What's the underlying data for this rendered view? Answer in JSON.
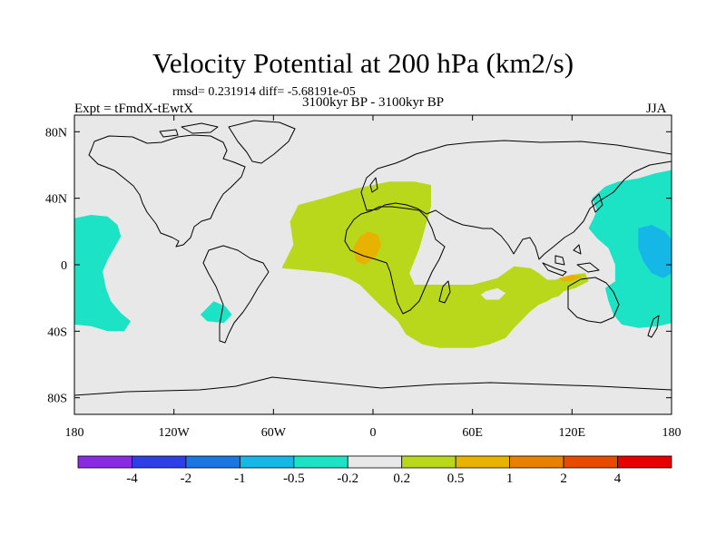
{
  "chart_data": {
    "type": "heatmap",
    "title": "Velocity Potential at 200 hPa (km2/s)",
    "rmsd_label": "rmsd= 0.231914 diff= -5.68191e-05",
    "period": "3100kyr BP - 3100kyr BP",
    "experiment": "Expt = tFmdX-tEwtX",
    "season": "JJA",
    "x_ticks": [
      "180",
      "120W",
      "60W",
      "0",
      "60E",
      "120E",
      "180"
    ],
    "x_tick_values": [
      -180,
      -120,
      -60,
      0,
      60,
      120,
      180
    ],
    "y_ticks": [
      "80N",
      "40N",
      "0",
      "40S",
      "80S"
    ],
    "y_tick_values": [
      80,
      40,
      0,
      -40,
      -80
    ],
    "xlim": [
      -180,
      180
    ],
    "ylim": [
      -90,
      90
    ],
    "colorbar": {
      "colors": [
        "#8a2be2",
        "#2f3fe6",
        "#1a76e0",
        "#14b7e5",
        "#1de3c6",
        "#e8e8e8",
        "#b9d81c",
        "#e8b300",
        "#e88000",
        "#e84a00",
        "#e80000"
      ],
      "labels": [
        "-4",
        "-2",
        "-1",
        "-0.5",
        "-0.2",
        "0.2",
        "0.5",
        "1",
        "2",
        "4"
      ]
    },
    "regions": [
      {
        "name": "positive-atlantic-africa",
        "level": "0.2 to 0.5",
        "color": "#b9d81c",
        "points": [
          [
            -55,
            -2
          ],
          [
            -48,
            12
          ],
          [
            -50,
            26
          ],
          [
            -45,
            36
          ],
          [
            -30,
            40
          ],
          [
            -10,
            46
          ],
          [
            10,
            50
          ],
          [
            25,
            50
          ],
          [
            35,
            48
          ],
          [
            35,
            35
          ],
          [
            28,
            10
          ],
          [
            22,
            -5
          ],
          [
            25,
            -12
          ],
          [
            40,
            -12
          ],
          [
            60,
            -12
          ],
          [
            75,
            -8
          ],
          [
            85,
            -1
          ],
          [
            95,
            -2
          ],
          [
            100,
            -5
          ],
          [
            105,
            -9
          ],
          [
            110,
            -9
          ],
          [
            120,
            -6
          ],
          [
            128,
            -5
          ],
          [
            130,
            -10
          ],
          [
            122,
            -14
          ],
          [
            115,
            -16
          ],
          [
            112,
            -19
          ],
          [
            108,
            -20
          ],
          [
            105,
            -22
          ],
          [
            100,
            -24
          ],
          [
            95,
            -28
          ],
          [
            90,
            -33
          ],
          [
            85,
            -38
          ],
          [
            80,
            -44
          ],
          [
            70,
            -48
          ],
          [
            60,
            -50
          ],
          [
            40,
            -50
          ],
          [
            30,
            -48
          ],
          [
            20,
            -42
          ],
          [
            15,
            -34
          ],
          [
            5,
            -25
          ],
          [
            -2,
            -18
          ],
          [
            -8,
            -12
          ],
          [
            -15,
            -8
          ],
          [
            -25,
            -5
          ],
          [
            -35,
            -4
          ],
          [
            -45,
            -3
          ]
        ]
      },
      {
        "name": "positive-africa-core",
        "level": "0.5 to 1",
        "color": "#e8b300",
        "points": [
          [
            -12,
            10
          ],
          [
            -8,
            17
          ],
          [
            -3,
            20
          ],
          [
            3,
            18
          ],
          [
            5,
            12
          ],
          [
            2,
            5
          ],
          [
            -5,
            0
          ],
          [
            -10,
            2
          ]
        ]
      },
      {
        "name": "positive-indonesia-core",
        "level": "0.5 to 1",
        "color": "#e8b300",
        "points": [
          [
            112,
            -8
          ],
          [
            120,
            -6
          ],
          [
            126,
            -7
          ],
          [
            120,
            -10
          ],
          [
            114,
            -10
          ]
        ]
      },
      {
        "name": "negative-east-pacific",
        "level": "-0.5 to -0.2",
        "color": "#1de3c6",
        "points": [
          [
            -180,
            28
          ],
          [
            -170,
            30
          ],
          [
            -160,
            29
          ],
          [
            -154,
            24
          ],
          [
            -152,
            17
          ],
          [
            -156,
            10
          ],
          [
            -160,
            3
          ],
          [
            -163,
            -4
          ],
          [
            -161,
            -14
          ],
          [
            -158,
            -22
          ],
          [
            -152,
            -29
          ],
          [
            -146,
            -34
          ],
          [
            -150,
            -40
          ],
          [
            -160,
            -40
          ],
          [
            -170,
            -37
          ],
          [
            -180,
            -36
          ]
        ]
      },
      {
        "name": "negative-south-pacific-blob",
        "level": "-0.5 to -0.2",
        "color": "#1de3c6",
        "points": [
          [
            -96,
            -22
          ],
          [
            -89,
            -25
          ],
          [
            -85,
            -30
          ],
          [
            -90,
            -35
          ],
          [
            -100,
            -34
          ],
          [
            -104,
            -30
          ]
        ]
      },
      {
        "name": "negative-west-pacific",
        "level": "-0.5 to -0.2",
        "color": "#1de3c6",
        "points": [
          [
            140,
            47
          ],
          [
            148,
            50
          ],
          [
            160,
            52
          ],
          [
            170,
            55
          ],
          [
            180,
            57
          ],
          [
            180,
            -35
          ],
          [
            172,
            -37
          ],
          [
            160,
            -38
          ],
          [
            150,
            -36
          ],
          [
            145,
            -30
          ],
          [
            142,
            -22
          ],
          [
            140,
            -14
          ],
          [
            146,
            -10
          ],
          [
            146,
            0
          ],
          [
            142,
            10
          ],
          [
            135,
            16
          ],
          [
            130,
            22
          ],
          [
            133,
            28
          ],
          [
            135,
            33
          ],
          [
            132,
            40
          ]
        ]
      },
      {
        "name": "negative-west-pacific-core",
        "level": "-1 to -0.5",
        "color": "#14b7e5",
        "points": [
          [
            160,
            22
          ],
          [
            168,
            24
          ],
          [
            176,
            20
          ],
          [
            180,
            15
          ],
          [
            180,
            -5
          ],
          [
            175,
            -8
          ],
          [
            168,
            -5
          ],
          [
            163,
            2
          ],
          [
            160,
            10
          ]
        ]
      }
    ],
    "holes": [
      {
        "name": "indian-ocean-hole",
        "color": "#e8e8e8",
        "points": [
          [
            68,
            -16
          ],
          [
            75,
            -14
          ],
          [
            80,
            -17
          ],
          [
            76,
            -21
          ],
          [
            68,
            -21
          ],
          [
            65,
            -18
          ]
        ]
      }
    ]
  }
}
